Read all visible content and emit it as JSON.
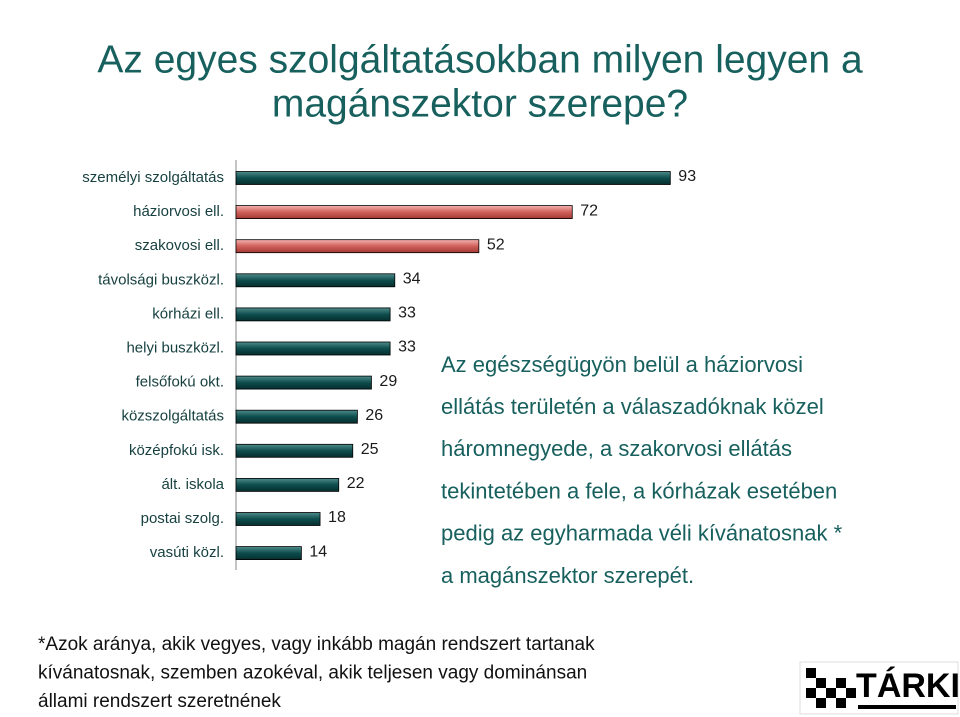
{
  "chart_data": {
    "type": "bar",
    "orientation": "horizontal",
    "title": [
      "Az egyes szolgáltatásokban milyen legyen a",
      "magánszektor szerepe?"
    ],
    "categories": [
      "személyi szolgáltatás",
      "háziorvosi ell.",
      "szakovosi ell.",
      "távolsági buszközl.",
      "kórházi ell.",
      "helyi buszközl.",
      "felsőfokú okt.",
      "közszolgáltatás",
      "középfokú isk.",
      "ált. iskola",
      "postai szolg.",
      "vasúti közl."
    ],
    "values": [
      93,
      72,
      52,
      34,
      33,
      33,
      29,
      26,
      25,
      22,
      18,
      14
    ],
    "colors": [
      "#0e4d4d",
      "#d0605a",
      "#d0605a",
      "#0e4d4d",
      "#0e4d4d",
      "#0e4d4d",
      "#0e4d4d",
      "#0e4d4d",
      "#0e4d4d",
      "#0e4d4d",
      "#0e4d4d",
      "#0e4d4d"
    ],
    "xlim": [
      0,
      100
    ]
  },
  "note": [
    "Az egészségügyön belül a háziorvosi",
    "ellátás területén a válaszadóknak közel",
    "háromnegyede, a szakorvosi ellátás",
    "tekintetében a fele, a kórházak esetében",
    "pedig az egyharmada véli kívánatosnak *",
    "a magánszektor szerepét."
  ],
  "footnote": [
    "*Azok aránya, akik vegyes, vagy inkább magán rendszert tartanak",
    "kívánatosnak, szemben azokéval, akik teljesen vagy dominánsan",
    "állami rendszert szeretnének"
  ],
  "logo": "TÁRKI"
}
